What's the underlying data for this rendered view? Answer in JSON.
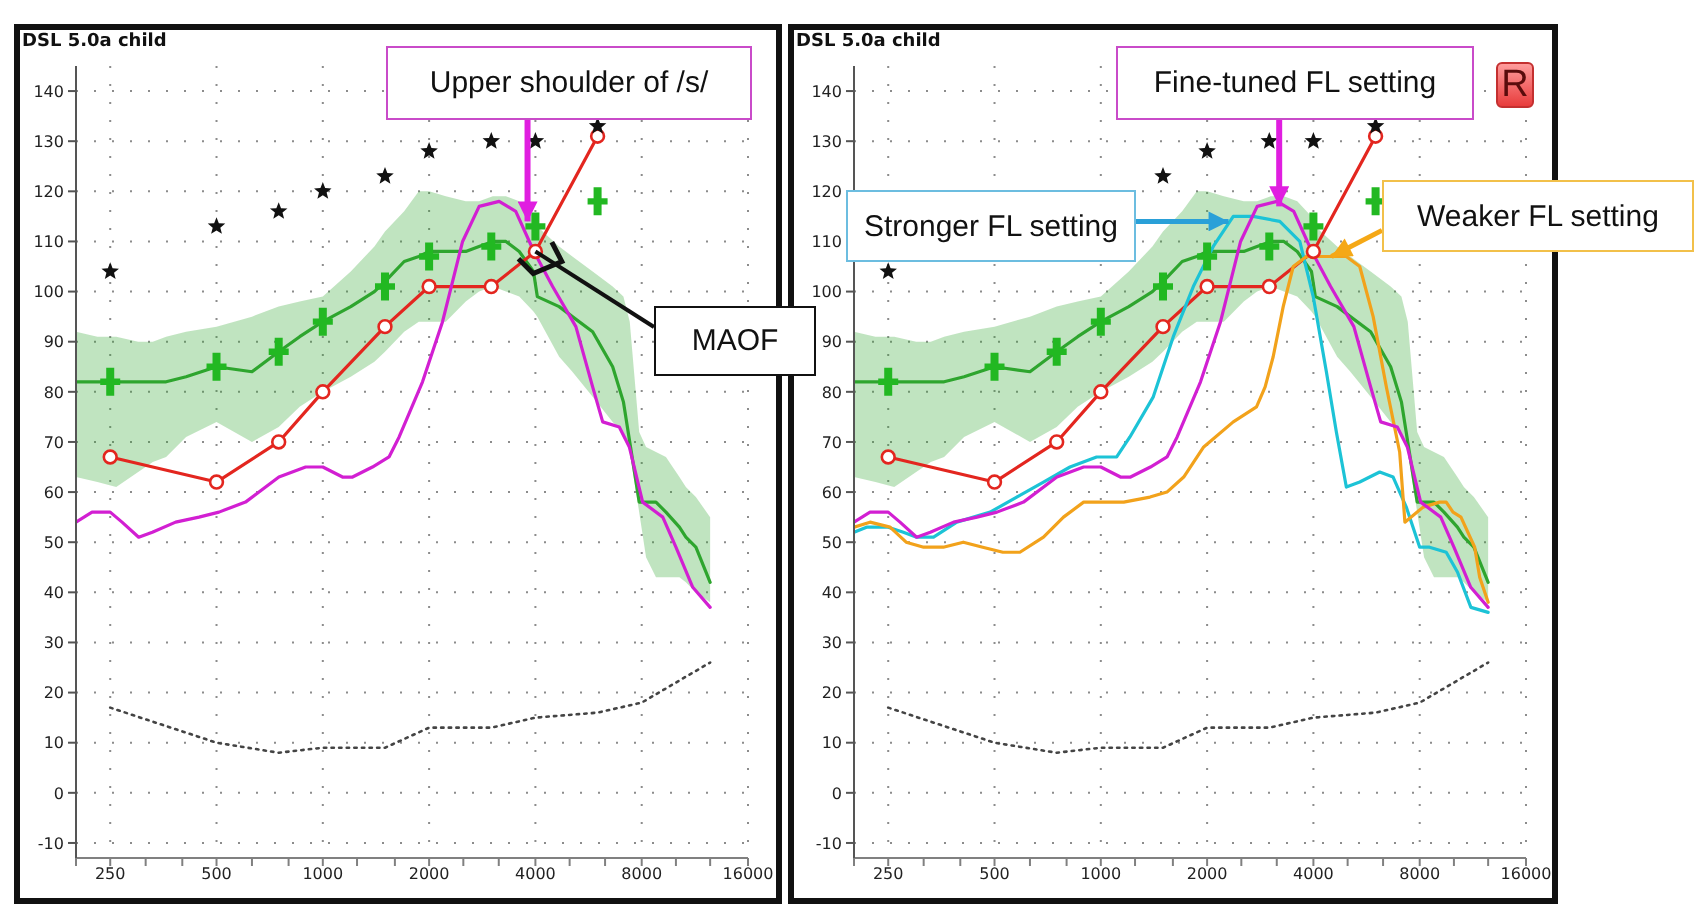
{
  "chart_data": [
    {
      "type": "line",
      "title": "DSL 5.0a child",
      "log": "x",
      "xlim": [
        200,
        16000
      ],
      "xticks": [
        {
          "value": 200,
          "label": null
        },
        250,
        {
          "value": 315,
          "label": null
        },
        {
          "value": 400,
          "label": null
        },
        500,
        {
          "value": 630,
          "label": null
        },
        {
          "value": 800,
          "label": null
        },
        1000,
        {
          "value": 1250,
          "label": null
        },
        {
          "value": 1600,
          "label": null
        },
        2000,
        {
          "value": 2500,
          "label": null
        },
        {
          "value": 3150,
          "label": null
        },
        4000,
        {
          "value": 5000,
          "label": null
        },
        {
          "value": 6300,
          "label": null
        },
        8000,
        {
          "value": 10000,
          "label": null
        },
        {
          "value": 12500,
          "label": null
        },
        16000
      ],
      "ylim": [
        -13,
        145
      ],
      "yticks": [
        -10,
        0,
        10,
        20,
        30,
        40,
        50,
        60,
        70,
        80,
        90,
        100,
        110,
        120,
        130,
        140
      ],
      "grid": true,
      "series": [
        {
          "color": "#2ea52e",
          "x": [
            200,
            230,
            260,
            300,
            330,
            360,
            410,
            500,
            630,
            750,
            860,
            1000,
            1200,
            1400,
            1500,
            1700,
            1870,
            2000,
            2230,
            2540,
            2770,
            3030,
            3300,
            3600,
            3950,
            4050,
            4670,
            5090,
            5810,
            6620,
            7100,
            7400,
            7870,
            8230,
            8780,
            9370,
            10230,
            10670,
            11390,
            12500
          ],
          "values": [
            82,
            82,
            82,
            82,
            82,
            82,
            83,
            85,
            84,
            88,
            91,
            94,
            97,
            100,
            102,
            106,
            107,
            108,
            108,
            108,
            109,
            110,
            110,
            108,
            104,
            99,
            97,
            95,
            92,
            85,
            78,
            70,
            58,
            58,
            58,
            56,
            53,
            51,
            49,
            42
          ],
          "lower": [
            63,
            62,
            61,
            64,
            66,
            67,
            71,
            74,
            70,
            73,
            77,
            80,
            83,
            86,
            88,
            92,
            94,
            94,
            94,
            98,
            100,
            101,
            100,
            99,
            96,
            95,
            87,
            84,
            79,
            74,
            72,
            68,
            56,
            47,
            43,
            43,
            43,
            42,
            40,
            38
          ],
          "upper": [
            92,
            91,
            91,
            90,
            90,
            91,
            92,
            93,
            95,
            97,
            98,
            99,
            104,
            109,
            112,
            116,
            120,
            120,
            119,
            118,
            118,
            119,
            119,
            118,
            115,
            113,
            109,
            107,
            104,
            101,
            99,
            94,
            72,
            69,
            68,
            67,
            63,
            61,
            59,
            55
          ]
        },
        {
          "color": "#444444",
          "line_style": "dotted",
          "x": [
            250,
            500,
            750,
            1000,
            1500,
            2000,
            3000,
            4000,
            6000,
            8000,
            12500
          ],
          "values": [
            17,
            10,
            8,
            9,
            9,
            13,
            13,
            15,
            16,
            18,
            26
          ]
        },
        {
          "color": "#e3261f",
          "marker": "circle",
          "x": [
            250,
            500,
            750,
            1000,
            1500,
            2000,
            3000,
            4000,
            6000
          ],
          "values": [
            67,
            62,
            70,
            80,
            93,
            101,
            101,
            108,
            131
          ]
        },
        {
          "color": "#d21fd2",
          "x": [
            200,
            222,
            250,
            270,
            301,
            329,
            383,
            446,
            508,
            604,
            751,
            894,
            1000,
            1137,
            1214,
            1382,
            1540,
            1645,
            1916,
            2183,
            2488,
            2772,
            3158,
            3519,
            3960,
            4475,
            5208,
            5810,
            6203,
            6912,
            7380,
            8050,
            9178,
            10000,
            11160,
            12500
          ],
          "values": [
            54,
            56,
            56,
            54,
            51,
            52,
            54,
            55,
            56,
            58,
            63,
            65,
            65,
            63,
            63,
            65,
            67,
            71,
            82,
            94,
            110,
            117,
            118,
            116,
            108,
            101,
            93,
            81,
            74,
            73,
            69,
            58,
            55,
            49,
            41,
            37
          ]
        },
        {
          "type": "scatter",
          "marker": "cross",
          "color": "#22b822",
          "x": [
            250,
            500,
            750,
            1000,
            1500,
            2000,
            3000,
            4000,
            6000
          ],
          "values": [
            82,
            85,
            88,
            94,
            101,
            107,
            109,
            113,
            118
          ]
        },
        {
          "type": "scatter",
          "marker": "star",
          "color": "#111111",
          "x": [
            250,
            500,
            750,
            1000,
            1500,
            2000,
            3000,
            4000,
            6000
          ],
          "values": [
            104,
            113,
            116,
            120,
            123,
            128,
            130,
            130,
            133
          ]
        }
      ],
      "annotations": [
        {
          "text": "Upper shoulder of /s/",
          "x": 3800,
          "y": 114
        },
        {
          "text": "MAOF",
          "x": 4000,
          "y": 108
        }
      ]
    },
    {
      "type": "line",
      "title": "DSL 5.0a child",
      "log": "x",
      "xlim": [
        200,
        16000
      ],
      "xticks": [
        {
          "value": 200,
          "label": null
        },
        250,
        {
          "value": 315,
          "label": null
        },
        {
          "value": 400,
          "label": null
        },
        500,
        {
          "value": 630,
          "label": null
        },
        {
          "value": 800,
          "label": null
        },
        1000,
        {
          "value": 1250,
          "label": null
        },
        {
          "value": 1600,
          "label": null
        },
        2000,
        {
          "value": 2500,
          "label": null
        },
        {
          "value": 3150,
          "label": null
        },
        4000,
        {
          "value": 5000,
          "label": null
        },
        {
          "value": 6300,
          "label": null
        },
        8000,
        {
          "value": 10000,
          "label": null
        },
        {
          "value": 12500,
          "label": null
        },
        16000
      ],
      "ylim": [
        -13,
        145
      ],
      "yticks": [
        -10,
        0,
        10,
        20,
        30,
        40,
        50,
        60,
        70,
        80,
        90,
        100,
        110,
        120,
        130,
        140
      ],
      "grid": true,
      "series": [
        {
          "color": "#2ea52e",
          "x": [
            200,
            230,
            260,
            300,
            330,
            360,
            410,
            500,
            630,
            750,
            860,
            1000,
            1200,
            1400,
            1500,
            1700,
            1870,
            2000,
            2230,
            2540,
            2770,
            3030,
            3300,
            3600,
            3950,
            4050,
            4670,
            5090,
            5810,
            6620,
            7100,
            7400,
            7870,
            8230,
            8780,
            9370,
            10230,
            10670,
            11390,
            12500
          ],
          "values": [
            82,
            82,
            82,
            82,
            82,
            82,
            83,
            85,
            84,
            88,
            91,
            94,
            97,
            100,
            102,
            106,
            107,
            108,
            108,
            108,
            109,
            110,
            110,
            108,
            104,
            99,
            97,
            95,
            92,
            85,
            78,
            70,
            58,
            58,
            58,
            56,
            53,
            51,
            49,
            42
          ],
          "lower": [
            63,
            62,
            61,
            64,
            66,
            67,
            71,
            74,
            70,
            73,
            77,
            80,
            83,
            86,
            88,
            92,
            94,
            94,
            94,
            98,
            100,
            101,
            100,
            99,
            96,
            95,
            87,
            84,
            79,
            74,
            72,
            68,
            56,
            47,
            43,
            43,
            43,
            42,
            40,
            38
          ],
          "upper": [
            92,
            91,
            91,
            90,
            90,
            91,
            92,
            93,
            95,
            97,
            98,
            99,
            104,
            109,
            112,
            116,
            120,
            120,
            119,
            118,
            118,
            119,
            119,
            118,
            115,
            113,
            109,
            107,
            104,
            101,
            99,
            94,
            72,
            69,
            68,
            67,
            63,
            61,
            59,
            55
          ]
        },
        {
          "color": "#444444",
          "line_style": "dotted",
          "x": [
            250,
            500,
            750,
            1000,
            1500,
            2000,
            3000,
            4000,
            6000,
            8000,
            12500
          ],
          "values": [
            17,
            10,
            8,
            9,
            9,
            13,
            13,
            15,
            16,
            18,
            26
          ]
        },
        {
          "color": "#e3261f",
          "marker": "circle",
          "x": [
            250,
            500,
            750,
            1000,
            1500,
            2000,
            3000,
            4000,
            6000
          ],
          "values": [
            67,
            62,
            70,
            80,
            93,
            101,
            101,
            108,
            131
          ]
        },
        {
          "color": "#1cc3d6",
          "x": [
            200,
            217,
            250,
            276,
            301,
            336,
            391,
            486,
            578,
            688,
            818,
            973,
            1109,
            1209,
            1408,
            1604,
            1828,
            2082,
            2372,
            2702,
            3212,
            3660,
            3995,
            4353,
            4646,
            4958,
            5411,
            6163,
            6727,
            7330,
            8000,
            8530,
            9510,
            10240,
            11170,
            12500
          ],
          "values": [
            52,
            53,
            53,
            52,
            51,
            51,
            54,
            56,
            59,
            62,
            65,
            67,
            67,
            71,
            79,
            91,
            101,
            109,
            115,
            115,
            114,
            110,
            99,
            84,
            72,
            61,
            62,
            64,
            63,
            57,
            49,
            49,
            48,
            44,
            37,
            36
          ]
        },
        {
          "color": "#f2a21b",
          "x": [
            200,
            222,
            253,
            281,
            315,
            358,
            408,
            463,
            528,
            590,
            688,
            784,
            894,
            1018,
            1161,
            1378,
            1539,
            1717,
            1956,
            2372,
            2760,
            2920,
            3077,
            3285,
            3507,
            3822,
            4170,
            4958,
            5411,
            5906,
            6435,
            7020,
            7264,
            8180,
            9110,
            9510,
            9940,
            10470,
            11450,
            11830,
            12500
          ],
          "values": [
            53,
            54,
            53,
            50,
            49,
            49,
            50,
            49,
            48,
            48,
            51,
            55,
            58,
            58,
            58,
            59,
            60,
            63,
            69,
            74,
            77,
            81,
            87,
            97,
            105,
            107,
            107,
            107,
            105,
            95,
            81,
            68,
            54,
            57,
            58,
            58,
            56,
            55,
            49,
            43,
            38
          ]
        },
        {
          "color": "#d21fd2",
          "x": [
            200,
            222,
            250,
            270,
            301,
            329,
            383,
            446,
            508,
            604,
            751,
            894,
            1000,
            1137,
            1214,
            1382,
            1540,
            1645,
            1916,
            2183,
            2488,
            2772,
            3158,
            3519,
            3960,
            4475,
            5208,
            5810,
            6203,
            6912,
            7380,
            8050,
            9178,
            10000,
            11160,
            12500
          ],
          "values": [
            54,
            56,
            56,
            54,
            51,
            52,
            54,
            55,
            56,
            58,
            63,
            65,
            65,
            63,
            63,
            65,
            67,
            71,
            82,
            94,
            110,
            117,
            118,
            116,
            108,
            101,
            93,
            81,
            74,
            73,
            69,
            58,
            55,
            49,
            41,
            37
          ]
        },
        {
          "type": "scatter",
          "marker": "cross",
          "color": "#22b822",
          "x": [
            250,
            500,
            750,
            1000,
            1500,
            2000,
            3000,
            4000,
            6000
          ],
          "values": [
            82,
            85,
            88,
            94,
            101,
            107,
            109,
            113,
            118
          ]
        },
        {
          "type": "scatter",
          "marker": "star",
          "color": "#111111",
          "x": [
            250,
            500,
            750,
            1000,
            1500,
            2000,
            3000,
            4000,
            6000
          ],
          "values": [
            104,
            null,
            null,
            null,
            123,
            128,
            130,
            130,
            133
          ]
        }
      ],
      "annotations": [
        {
          "text": "Fine-tuned FL setting",
          "x": 3200,
          "y": 117
        },
        {
          "text": "Stronger FL setting",
          "x": 2300,
          "y": 114
        },
        {
          "text": "Weaker FL setting",
          "x": 4500,
          "y": 107
        },
        "R"
      ]
    }
  ]
}
